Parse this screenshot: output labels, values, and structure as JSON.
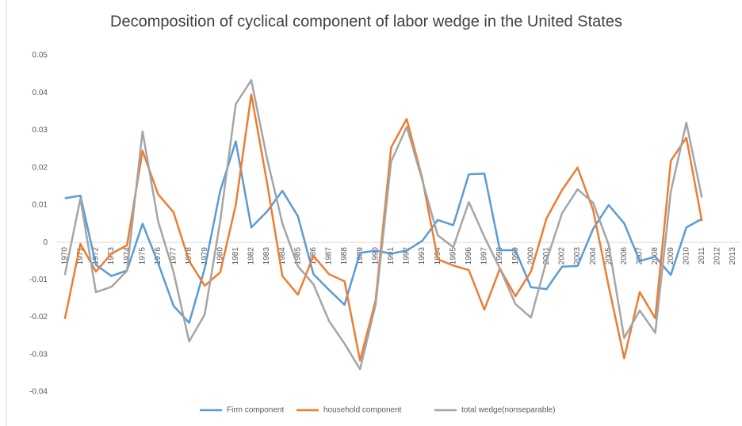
{
  "chart_data": {
    "type": "line",
    "title": "Decomposition of cyclical component of labor wedge in the United States",
    "categories": [
      "1970",
      "1971",
      "1972",
      "1973",
      "1974",
      "1975",
      "1976",
      "1977",
      "1978",
      "1979",
      "1980",
      "1981",
      "1982",
      "1983",
      "1984",
      "1985",
      "1986",
      "1987",
      "1988",
      "1989",
      "1990",
      "1991",
      "1992",
      "1993",
      "1994",
      "1995",
      "1996",
      "1997",
      "1998",
      "1999",
      "2000",
      "2001",
      "2002",
      "2003",
      "2004",
      "2005",
      "2006",
      "2007",
      "2008",
      "2009",
      "2010",
      "2011",
      "2012",
      "2013"
    ],
    "series": [
      {
        "name": "Firm component",
        "color": "#5b9bd5",
        "values": [
          0.0118,
          0.0125,
          -0.006,
          -0.009,
          -0.0075,
          0.005,
          -0.0055,
          -0.017,
          -0.0215,
          -0.007,
          0.0138,
          0.027,
          0.004,
          0.0082,
          0.0138,
          0.007,
          -0.0085,
          -0.0127,
          -0.0167,
          -0.0028,
          -0.0022,
          -0.003,
          -0.0022,
          0.0004,
          0.006,
          0.0046,
          0.0182,
          0.0184,
          -0.0021,
          -0.0021,
          -0.012,
          -0.0125,
          -0.0065,
          -0.0063,
          0.0036,
          0.01,
          0.0051,
          -0.005,
          -0.0038,
          -0.0087,
          0.004,
          0.0063,
          null,
          null
        ]
      },
      {
        "name": "household component",
        "color": "#ed7d31",
        "values": [
          -0.0205,
          -0.0004,
          -0.0078,
          -0.003,
          -0.0008,
          0.0245,
          0.0129,
          0.008,
          -0.005,
          -0.0116,
          -0.008,
          0.01,
          0.0396,
          0.0163,
          -0.009,
          -0.014,
          -0.0036,
          -0.0085,
          -0.0104,
          -0.0316,
          -0.0155,
          0.0254,
          0.033,
          0.0172,
          -0.0045,
          -0.0062,
          -0.0074,
          -0.018,
          -0.007,
          -0.0144,
          -0.0078,
          0.0064,
          0.014,
          0.02,
          0.0087,
          -0.0117,
          -0.031,
          -0.0133,
          -0.0203,
          0.0218,
          0.028,
          0.0057,
          null,
          null
        ]
      },
      {
        "name": "total wedge(nonseparable)",
        "color": "#a5a5a5",
        "values": [
          -0.0087,
          0.0117,
          -0.0133,
          -0.0119,
          -0.0076,
          0.0297,
          0.0057,
          -0.008,
          -0.0265,
          -0.0193,
          0.0057,
          0.037,
          0.0434,
          0.0227,
          0.0051,
          -0.0064,
          -0.0112,
          -0.021,
          -0.0271,
          -0.0339,
          -0.0167,
          0.0216,
          0.0309,
          0.0167,
          0.0019,
          -0.0013,
          0.0108,
          0.0015,
          -0.007,
          -0.0165,
          -0.0201,
          -0.0049,
          0.0078,
          0.0142,
          0.0106,
          -0.0006,
          -0.0256,
          -0.0182,
          -0.0242,
          0.0136,
          0.032,
          0.012,
          null,
          null
        ]
      }
    ],
    "ylim": [
      -0.04,
      0.05
    ],
    "yticks": [
      -0.04,
      -0.03,
      -0.02,
      -0.01,
      0,
      0.01,
      0.02,
      0.03,
      0.04,
      0.05
    ],
    "grid": false,
    "legend": "bottom"
  }
}
